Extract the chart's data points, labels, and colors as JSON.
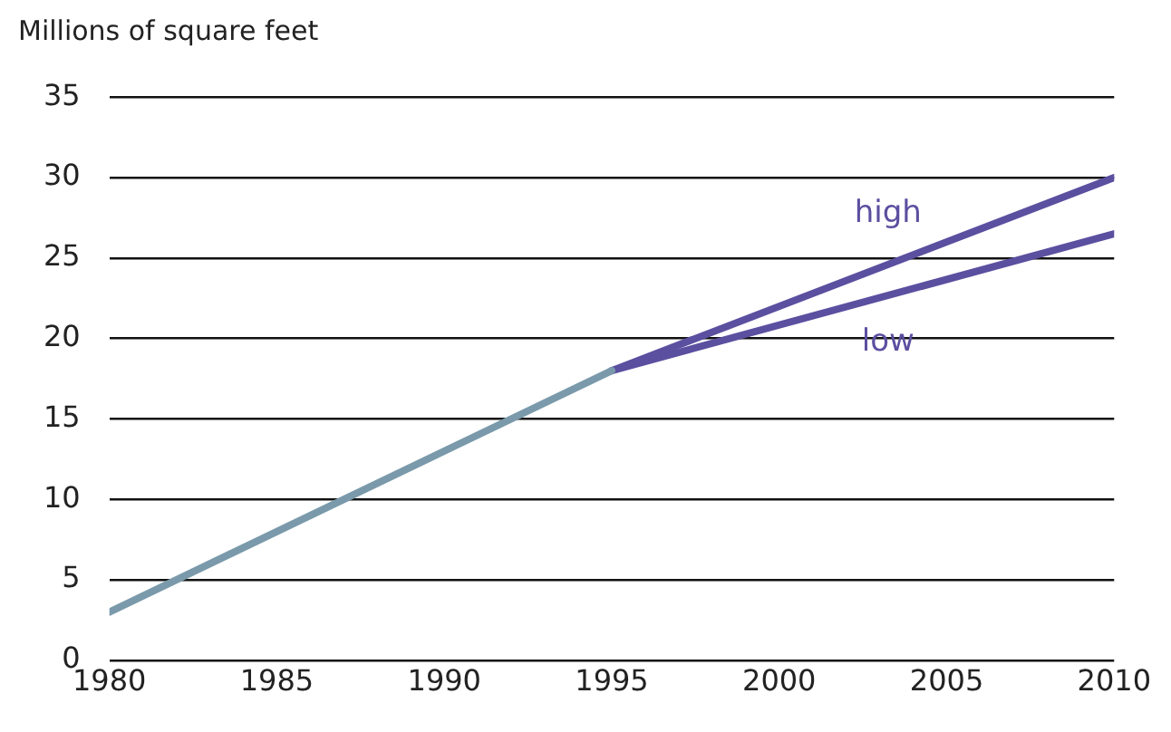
{
  "chart_data": {
    "type": "line",
    "ylabel": "Millions of square feet",
    "xlim": [
      1980,
      2010
    ],
    "xticks": [
      1980,
      1985,
      1990,
      1995,
      2000,
      2005,
      2010
    ],
    "ylim": [
      0,
      35
    ],
    "yticks": [
      0,
      5,
      10,
      15,
      20,
      25,
      30,
      35
    ],
    "grid": "y",
    "series": [
      {
        "color": "#7a9aab",
        "x": [
          1980,
          1995
        ],
        "values": [
          3,
          18
        ]
      },
      {
        "name": "high",
        "color": "#5b4fa0",
        "x": [
          1995,
          2010
        ],
        "values": [
          18,
          30
        ]
      },
      {
        "name": "low",
        "color": "#5b4fa0",
        "x": [
          1995,
          2010
        ],
        "values": [
          18,
          26.5
        ]
      }
    ]
  }
}
